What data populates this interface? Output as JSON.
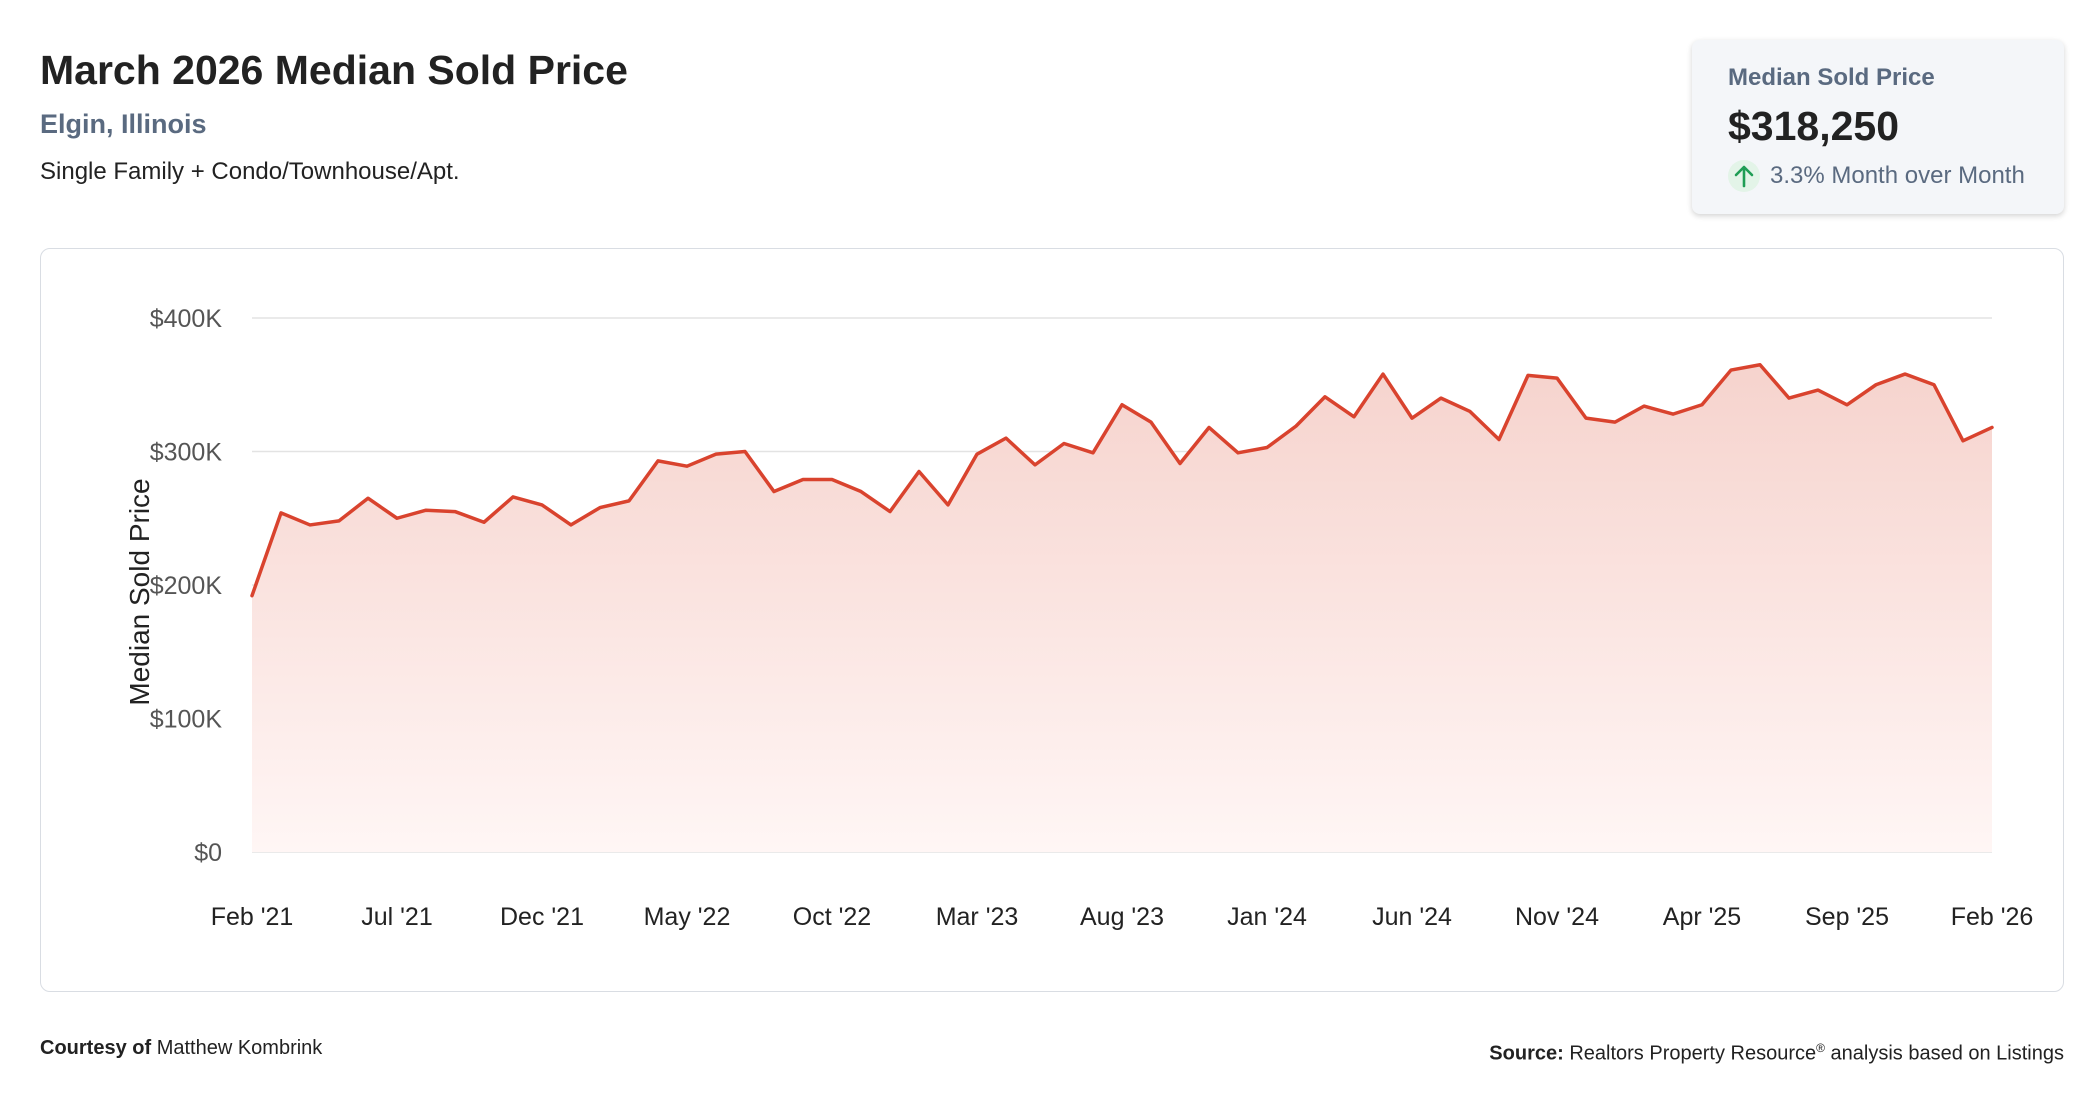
{
  "header": {
    "title": "March 2026 Median Sold Price",
    "location": "Elgin, Illinois",
    "property_type": "Single Family + Condo/Townhouse/Apt."
  },
  "stat_card": {
    "label": "Median Sold Price",
    "value": "$318,250",
    "change": "3.3% Month over Month",
    "change_icon": "arrow-up-icon",
    "change_color": "#1f9d55"
  },
  "footer": {
    "courtesy_label": "Courtesy of",
    "courtesy_name": "Matthew Kombrink",
    "source_label": "Source:",
    "source_text_pre": "Realtors Property Resource",
    "source_text_sup": "®",
    "source_text_post": " analysis based on Listings"
  },
  "colors": {
    "line": "#d9432e",
    "fill_top": "#f6d3cd",
    "fill_bottom": "#fff6f5",
    "grid": "#e3e3e3",
    "axis_text": "#555555"
  },
  "chart_data": {
    "type": "area",
    "ylabel": "Median Sold Price",
    "ylim": [
      0,
      400000
    ],
    "yticks": [
      0,
      100000,
      200000,
      300000,
      400000
    ],
    "ytick_labels": [
      "$0",
      "$100K",
      "$200K",
      "$300K",
      "$400K"
    ],
    "xtick_labels": [
      "Feb '21",
      "Jul '21",
      "Dec '21",
      "May '22",
      "Oct '22",
      "Mar '23",
      "Aug '23",
      "Jan '24",
      "Jun '24",
      "Nov '24",
      "Apr '25",
      "Sep '25",
      "Feb '26"
    ],
    "xtick_every": 5,
    "grid": true,
    "legend": false,
    "series": [
      {
        "values": [
          192000,
          254000,
          245000,
          248000,
          265000,
          250000,
          256000,
          255000,
          247000,
          266000,
          260000,
          245000,
          258000,
          263000,
          293000,
          289000,
          298000,
          300000,
          270000,
          279000,
          279000,
          270000,
          255000,
          285000,
          260000,
          298000,
          310000,
          290000,
          306000,
          299000,
          335000,
          322000,
          291000,
          318000,
          299000,
          303000,
          319000,
          341000,
          326000,
          358000,
          325000,
          340000,
          330000,
          309000,
          357000,
          355000,
          325000,
          322000,
          334000,
          328000,
          335000,
          361000,
          365000,
          340000,
          346000,
          335000,
          350000,
          358000,
          350000,
          308000,
          318000
        ]
      }
    ]
  }
}
